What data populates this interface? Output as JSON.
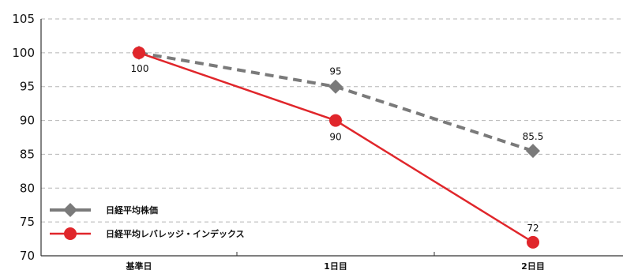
{
  "chart_data": {
    "type": "line",
    "categories": [
      "基準日",
      "1日目",
      "2日目"
    ],
    "ylim": [
      70,
      105
    ],
    "yticks": [
      70,
      75,
      80,
      85,
      90,
      95,
      100,
      105
    ],
    "grid": true,
    "legend_position": "bottom-left",
    "series": [
      {
        "name": "日経平均株価",
        "values": [
          100,
          95,
          85.5
        ],
        "labels": [
          "",
          "95",
          "85.5"
        ],
        "color": "#7a7a7a",
        "line_style": "dashed",
        "marker": "diamond"
      },
      {
        "name": "日経平均レバレッジ・インデックス",
        "values": [
          100,
          90,
          72
        ],
        "labels": [
          "100",
          "90",
          "72"
        ],
        "color": "#e0262b",
        "line_style": "solid",
        "marker": "circle"
      }
    ]
  }
}
